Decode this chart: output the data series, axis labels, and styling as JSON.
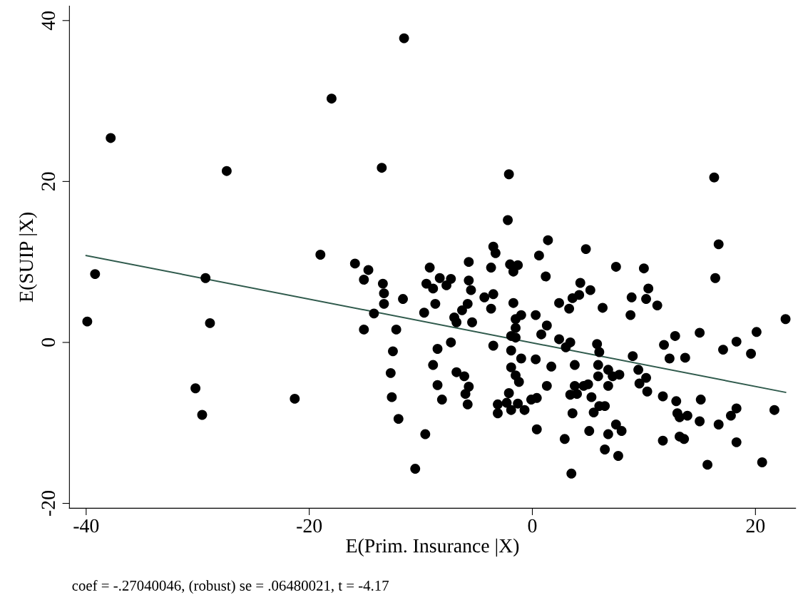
{
  "chart_data": {
    "type": "scatter",
    "xlabel": "E(Prim. Insurance |X)",
    "ylabel": "E(SUIP |X)",
    "annotations": [
      "coef = -.27040046, (robust) se = .06480021, t = -4.17"
    ],
    "xlim": [
      -41.5,
      23.6
    ],
    "ylim": [
      -20.6,
      41.8
    ],
    "xticks": [
      -40,
      -20,
      0,
      20
    ],
    "yticks": [
      -20,
      0,
      20,
      40
    ],
    "grid": false,
    "legend": false,
    "marker": "circle",
    "series": [
      {
        "color": "#000000",
        "x": [
          -39.9,
          -39.2,
          -37.8,
          -27.4,
          -29.3,
          -28.9,
          -30.2,
          -29.6,
          -18.0,
          -11.5,
          -13.5,
          -19.0,
          -21.3,
          -15.9,
          -14.7,
          -15.1,
          -13.4,
          -13.3,
          -13.3,
          -14.2,
          -15.1,
          -11.6,
          -12.2,
          -12.5,
          -12.7,
          -12.6,
          -12.0,
          -9.6,
          -10.5,
          -9.2,
          -9.5,
          -8.9,
          -8.3,
          -7.7,
          -7.3,
          -8.7,
          -9.7,
          -7.0,
          -6.8,
          -6.3,
          -5.8,
          -5.4,
          -5.7,
          -5.7,
          -5.5,
          -7.3,
          -8.5,
          -8.9,
          -6.8,
          -6.1,
          -8.5,
          -8.1,
          -5.7,
          -6.0,
          -5.8,
          -3.5,
          -3.3,
          -3.7,
          -4.3,
          -3.5,
          -3.7,
          -3.5,
          -2.2,
          -2.0,
          -1.3,
          -1.7,
          0.6,
          1.2,
          1.4,
          -1.7,
          -1.0,
          -1.5,
          -1.5,
          -1.9,
          -1.5,
          0.3,
          0.8,
          1.3,
          -1.9,
          -1.0,
          0.3,
          -1.9,
          -1.5,
          -1.2,
          1.3,
          -2.1,
          -3.1,
          -3.1,
          -2.3,
          -1.9,
          -1.3,
          -0.7,
          -0.1,
          0.4,
          0.4,
          -2.1,
          16.3,
          4.8,
          7.5,
          10.0,
          16.7,
          16.4,
          4.3,
          5.2,
          4.2,
          3.6,
          2.4,
          3.3,
          6.3,
          8.9,
          10.4,
          10.2,
          11.2,
          8.8,
          22.7,
          2.4,
          3.4,
          3.0,
          5.8,
          6.0,
          9.0,
          11.8,
          12.8,
          15.0,
          12.3,
          13.7,
          17.1,
          18.3,
          20.1,
          19.6,
          1.7,
          3.8,
          5.9,
          5.9,
          6.8,
          7.2,
          7.8,
          9.5,
          10.2,
          9.6,
          10.3,
          3.8,
          3.4,
          4.0,
          4.6,
          5.0,
          6.8,
          5.3,
          3.6,
          5.5,
          6.0,
          6.5,
          5.1,
          6.8,
          7.5,
          8.0,
          2.9,
          6.5,
          7.7,
          3.5,
          11.7,
          12.9,
          15.1,
          13.0,
          13.2,
          13.9,
          15.0,
          16.7,
          17.8,
          18.3,
          21.7,
          11.7,
          13.2,
          13.6,
          18.3,
          15.7,
          20.6
        ],
        "values": [
          2.6,
          8.5,
          25.4,
          21.3,
          8.0,
          2.4,
          -5.7,
          -9.0,
          30.3,
          37.8,
          21.7,
          10.9,
          -7.0,
          9.8,
          9.0,
          7.8,
          7.3,
          6.1,
          4.8,
          3.6,
          1.6,
          5.4,
          1.6,
          -1.1,
          -3.8,
          -6.8,
          -9.5,
          -11.4,
          -15.7,
          9.3,
          7.3,
          6.7,
          8.0,
          7.1,
          7.9,
          4.8,
          3.7,
          3.1,
          2.5,
          4.0,
          4.8,
          2.5,
          10.0,
          7.7,
          6.5,
          0.0,
          -0.8,
          -2.8,
          -3.7,
          -4.2,
          -5.3,
          -7.1,
          -5.5,
          -6.4,
          -7.7,
          11.9,
          11.1,
          9.3,
          5.6,
          6.0,
          4.2,
          -0.4,
          15.2,
          9.7,
          9.6,
          8.8,
          10.8,
          8.2,
          12.7,
          4.9,
          3.4,
          2.9,
          1.8,
          0.8,
          0.6,
          3.4,
          1.0,
          2.1,
          -1.0,
          -2.0,
          -2.1,
          -3.1,
          -4.1,
          -4.9,
          -5.4,
          -6.3,
          -7.7,
          -8.8,
          -7.5,
          -8.4,
          -7.6,
          -8.4,
          -7.1,
          -6.9,
          -10.8,
          20.9,
          20.5,
          11.6,
          9.4,
          9.2,
          12.2,
          8.0,
          7.4,
          6.5,
          5.9,
          5.5,
          4.9,
          4.2,
          4.3,
          5.6,
          6.7,
          5.4,
          4.6,
          3.4,
          2.9,
          0.4,
          0.0,
          -0.6,
          -0.2,
          -1.2,
          -1.7,
          -0.3,
          0.8,
          1.2,
          -2.0,
          -1.9,
          -0.9,
          0.1,
          1.3,
          -1.4,
          -3.0,
          -2.8,
          -2.8,
          -4.2,
          -3.4,
          -4.2,
          -4.0,
          -3.4,
          -4.4,
          -5.1,
          -6.1,
          -5.4,
          -6.5,
          -6.4,
          -5.4,
          -5.2,
          -5.4,
          -6.8,
          -8.8,
          -8.7,
          -7.9,
          -7.9,
          -11.0,
          -11.4,
          -10.2,
          -11.0,
          -12.0,
          -13.3,
          -14.1,
          -16.3,
          -6.7,
          -7.3,
          -7.1,
          -8.8,
          -9.3,
          -9.1,
          -9.8,
          -10.2,
          -9.1,
          -8.2,
          -8.4,
          -12.2,
          -11.7,
          -12.0,
          -12.4,
          -15.2,
          -14.9
        ]
      },
      {
        "type": "line",
        "color": "#2f5a4c",
        "marker": "none",
        "x": [
          -40,
          22.7
        ],
        "values": [
          10.8,
          -6.2
        ]
      }
    ]
  }
}
